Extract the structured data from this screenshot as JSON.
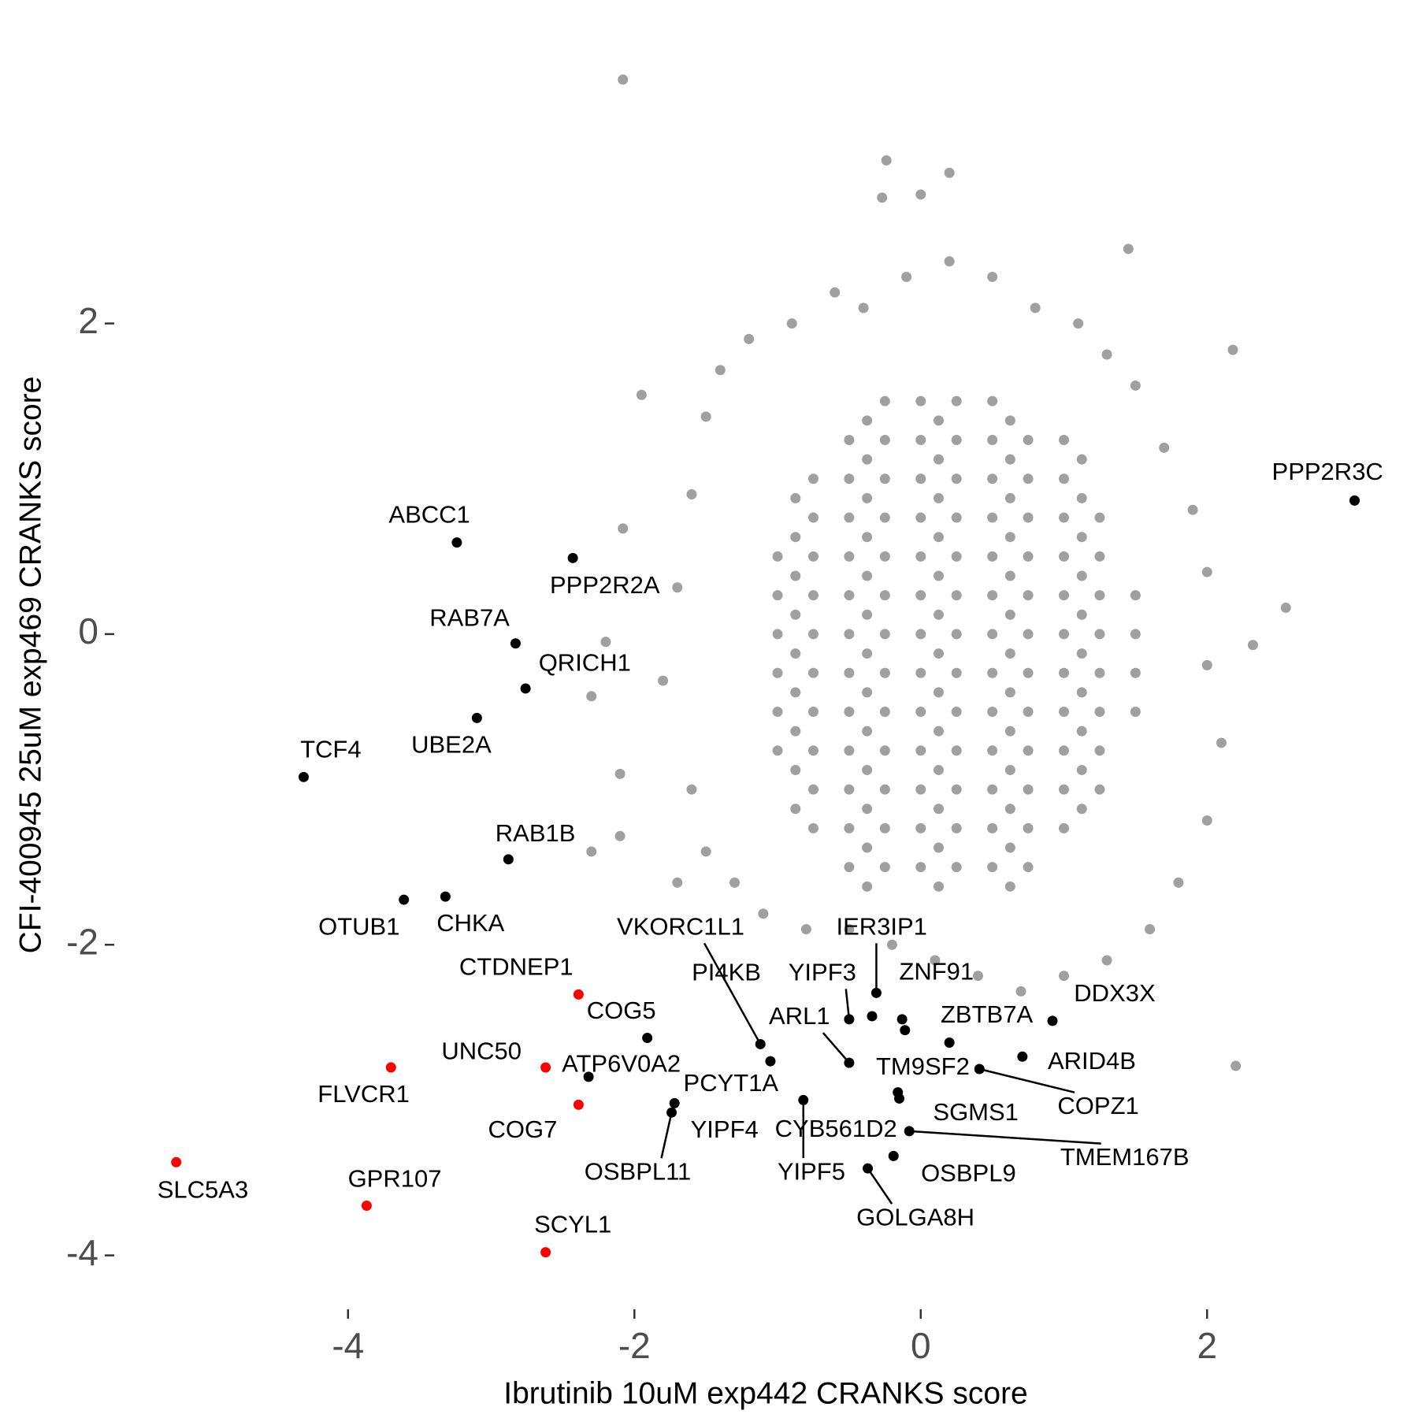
{
  "chart_data": {
    "type": "scatter",
    "xlabel": "Ibrutinib 10uM exp442 CRANKS score",
    "ylabel": "CFI-400945 25uM exp469 CRANKS score",
    "xlim": [
      -5.6,
      3.33
    ],
    "ylim": [
      -4.21,
      3.73
    ],
    "xticks": [
      -4,
      -2,
      0,
      2
    ],
    "yticks": [
      -4,
      -2,
      0,
      2
    ],
    "grid": false,
    "series": [
      {
        "color": "#a0a0a0",
        "x": [
          -2.08,
          -0.24,
          0.2,
          -0.27,
          0,
          1.45,
          2.18,
          2.55,
          2.32,
          2.2,
          -1.95,
          -2.08,
          -2.2,
          -2.3,
          -2.1,
          -2.1,
          -2.3,
          -1.7,
          -1.6,
          -1.8,
          -1.7,
          -1.6,
          -1.5,
          -1.4,
          -1.2,
          -0.9,
          -0.6,
          -0.4,
          -0.1,
          0.2,
          0.5,
          0.8,
          1.1,
          1.3,
          1.5,
          1.7,
          1.9,
          2.0,
          2.0,
          2.1,
          2.0,
          1.8,
          1.6,
          1.3,
          1.0,
          0.7,
          0.4,
          0.1,
          -0.2,
          -0.5,
          -0.8,
          -1.1,
          -1.3,
          -1.5,
          -1.0,
          -1.0,
          -1.0,
          -1.0,
          -1.0,
          -1.0,
          -0.75,
          -0.75,
          -0.75,
          -0.75,
          -0.75,
          -0.75,
          -0.75,
          -0.75,
          -0.75,
          -0.75,
          -0.5,
          -0.5,
          -0.5,
          -0.5,
          -0.5,
          -0.5,
          -0.5,
          -0.5,
          -0.5,
          -0.5,
          -0.5,
          -0.5,
          -0.25,
          -0.25,
          -0.25,
          -0.25,
          -0.25,
          -0.25,
          -0.25,
          -0.25,
          -0.25,
          -0.25,
          -0.25,
          -0.25,
          -0.25,
          0,
          0,
          0,
          0,
          0,
          0,
          0,
          0,
          0,
          0,
          0,
          0,
          0,
          0.25,
          0.25,
          0.25,
          0.25,
          0.25,
          0.25,
          0.25,
          0.25,
          0.25,
          0.25,
          0.25,
          0.25,
          0.25,
          0.5,
          0.5,
          0.5,
          0.5,
          0.5,
          0.5,
          0.5,
          0.5,
          0.5,
          0.5,
          0.5,
          0.5,
          0.5,
          0.75,
          0.75,
          0.75,
          0.75,
          0.75,
          0.75,
          0.75,
          0.75,
          0.75,
          0.75,
          0.75,
          0.75,
          1.0,
          1.0,
          1.0,
          1.0,
          1.0,
          1.0,
          1.0,
          1.0,
          1.0,
          1.0,
          1.0,
          1.25,
          1.25,
          1.25,
          1.25,
          1.25,
          1.25,
          1.25,
          1.25,
          1.5,
          1.5,
          1.5,
          1.5,
          -0.875,
          -0.875,
          -0.875,
          -0.875,
          -0.875,
          -0.875,
          -0.875,
          -0.875,
          -0.875,
          -0.375,
          -0.375,
          -0.375,
          -0.375,
          -0.375,
          -0.375,
          -0.375,
          -0.375,
          -0.375,
          -0.375,
          -0.375,
          -0.375,
          -0.375,
          0.125,
          0.125,
          0.125,
          0.125,
          0.125,
          0.125,
          0.125,
          0.125,
          0.125,
          0.125,
          0.125,
          0.125,
          0.125,
          0.625,
          0.625,
          0.625,
          0.625,
          0.625,
          0.625,
          0.625,
          0.625,
          0.625,
          0.625,
          0.625,
          0.625,
          0.625,
          1.125,
          1.125,
          1.125,
          1.125,
          1.125,
          1.125,
          1.125,
          1.125,
          1.125,
          1.125
        ],
        "y": [
          3.57,
          3.05,
          2.97,
          2.81,
          2.83,
          2.48,
          1.83,
          0.17,
          -0.07,
          -2.78,
          1.54,
          0.68,
          -0.05,
          -0.4,
          -0.9,
          -1.3,
          -1.4,
          -1.6,
          -1.0,
          -0.3,
          0.3,
          0.9,
          1.4,
          1.7,
          1.9,
          2.0,
          2.2,
          2.1,
          2.3,
          2.4,
          2.3,
          2.1,
          2.0,
          1.8,
          1.6,
          1.2,
          0.8,
          0.4,
          -0.2,
          -0.7,
          -1.2,
          -1.6,
          -1.9,
          -2.1,
          -2.2,
          -2.3,
          -2.2,
          -2.1,
          -2.0,
          -1.9,
          -1.9,
          -1.8,
          -1.6,
          -1.4,
          -0.75,
          -0.5,
          -0.25,
          0,
          0.25,
          0.5,
          -1.25,
          -1,
          -0.75,
          -0.5,
          -0.25,
          0,
          0.25,
          0.5,
          0.75,
          1,
          -1.5,
          -1.25,
          -1,
          -0.75,
          -0.5,
          -0.25,
          0,
          0.25,
          0.5,
          0.75,
          1,
          1.25,
          -1.5,
          -1.25,
          -1,
          -0.75,
          -0.5,
          -0.25,
          0,
          0.25,
          0.5,
          0.75,
          1,
          1.25,
          1.5,
          -1.5,
          -1.25,
          -1,
          -0.75,
          -0.5,
          -0.25,
          0,
          0.25,
          0.5,
          0.75,
          1,
          1.25,
          1.5,
          -1.5,
          -1.25,
          -1,
          -0.75,
          -0.5,
          -0.25,
          0,
          0.25,
          0.5,
          0.75,
          1,
          1.25,
          1.5,
          -1.5,
          -1.25,
          -1,
          -0.75,
          -0.5,
          -0.25,
          0,
          0.25,
          0.5,
          0.75,
          1,
          1.25,
          1.5,
          -1.5,
          -1.25,
          -1,
          -0.75,
          -0.5,
          -0.25,
          0,
          0.25,
          0.5,
          0.75,
          1,
          1.25,
          -1.25,
          -1,
          -0.75,
          -0.5,
          -0.25,
          0,
          0.25,
          0.5,
          0.75,
          1,
          1.25,
          -1,
          -0.75,
          -0.5,
          -0.25,
          0,
          0.25,
          0.5,
          0.75,
          -0.5,
          -0.25,
          0,
          0.25,
          -1.125,
          -0.875,
          -0.625,
          -0.375,
          -0.125,
          0.125,
          0.375,
          0.625,
          0.875,
          -1.625,
          -1.375,
          -1.125,
          -0.875,
          -0.625,
          -0.375,
          -0.125,
          0.125,
          0.375,
          0.625,
          0.875,
          1.125,
          1.375,
          -1.625,
          -1.375,
          -1.125,
          -0.875,
          -0.625,
          -0.375,
          -0.125,
          0.125,
          0.375,
          0.625,
          0.875,
          1.125,
          1.375,
          -1.625,
          -1.375,
          -1.125,
          -0.875,
          -0.625,
          -0.375,
          -0.125,
          0.125,
          0.375,
          0.625,
          0.875,
          1.125,
          1.375,
          -1.125,
          -0.875,
          -0.625,
          -0.375,
          -0.125,
          0.125,
          0.375,
          0.625,
          0.875,
          1.125
        ]
      },
      {
        "color": "#000000",
        "labels": [
          "PPP2R3C",
          "ABCC1",
          "PPP2R2A",
          "RAB7A",
          "QRICH1",
          "UBE2A",
          "TCF4",
          "RAB1B",
          "OTUB1",
          "CHKA",
          "COG5",
          "ATP6V0A2",
          "VKORC1L1",
          "PCYT1A",
          "OSBPL11",
          "YIPF4",
          "YIPF5",
          "IER3IP1",
          "YIPF3",
          "PI4KB",
          "ZNF91",
          "TM9SF2",
          "ARL1",
          "ZBTB7A",
          "DDX3X",
          "ARID4B",
          "COPZ1",
          "SGMS1",
          "CYB561D2",
          "TMEM167B",
          "OSBPL9",
          "GOLGA8H"
        ],
        "x": [
          3.03,
          -3.24,
          -2.43,
          -2.83,
          -2.76,
          -3.1,
          -4.31,
          -2.88,
          -3.61,
          -3.32,
          -1.91,
          -2.32,
          -1.12,
          -1.05,
          -1.74,
          -1.72,
          -0.82,
          -0.31,
          -0.5,
          -0.34,
          -0.13,
          -0.11,
          -0.5,
          0.2,
          0.92,
          0.71,
          0.41,
          -0.16,
          -0.15,
          -0.08,
          -0.19,
          -0.37
        ],
        "y": [
          0.86,
          0.59,
          0.49,
          -0.06,
          -0.35,
          -0.54,
          -0.92,
          -1.45,
          -1.71,
          -1.69,
          -2.6,
          -2.85,
          -2.64,
          -2.75,
          -3.08,
          -3.02,
          -3.0,
          -2.31,
          -2.48,
          -2.46,
          -2.48,
          -2.55,
          -2.76,
          -2.63,
          -2.49,
          -2.72,
          -2.8,
          -2.95,
          -2.99,
          -3.2,
          -3.36,
          -3.44
        ]
      },
      {
        "color": "#ff0000",
        "labels": [
          "CTDNEP1",
          "UNC50",
          "FLVCR1",
          "COG7",
          "SLC5A3",
          "GPR107",
          "SCYL1"
        ],
        "x": [
          -2.39,
          -2.62,
          -3.7,
          -2.39,
          -5.2,
          -3.87,
          -2.62
        ],
        "y": [
          -2.32,
          -2.79,
          -2.79,
          -3.03,
          -3.4,
          -3.68,
          -3.98
        ]
      }
    ]
  }
}
